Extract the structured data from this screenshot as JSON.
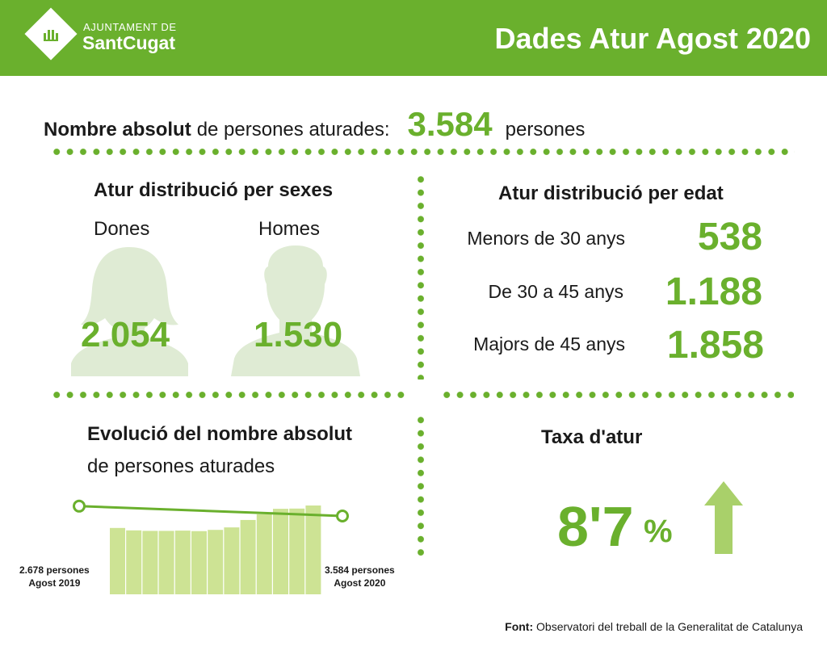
{
  "header": {
    "logo_line1": "AJUNTAMENT DE",
    "logo_line2": "SantCugat",
    "title": "Dades Atur Agost 2020"
  },
  "total": {
    "label_bold": "Nombre absolut",
    "label_rest": "de persones aturades:",
    "value": "3.584",
    "unit": "persones"
  },
  "sex": {
    "title": "Atur distribució per sexes",
    "women_label": "Dones",
    "men_label": "Homes",
    "women_value": "2.054",
    "men_value": "1.530"
  },
  "age": {
    "title": "Atur distribució per edat",
    "rows": [
      {
        "label": "Menors de 30 anys",
        "value": "538"
      },
      {
        "label": "De 30 a 45 anys",
        "value": "1.188"
      },
      {
        "label": "Majors de 45 anys",
        "value": "1.858"
      }
    ]
  },
  "evolution": {
    "title_bold": "Evolució del nombre absolut",
    "title_rest": "de persones aturades",
    "start_line1": "2.678 persones",
    "start_line2": "Agost 2019",
    "end_line1": "3.584 persones",
    "end_line2": "Agost 2020"
  },
  "chart_data": {
    "type": "bar",
    "values": [
      2678,
      2580,
      2560,
      2560,
      2570,
      2550,
      2600,
      2700,
      3000,
      3230,
      3450,
      3460,
      3584
    ],
    "ylim": [
      0,
      3584
    ],
    "trend": {
      "start": 2678,
      "end": 3584
    }
  },
  "rate": {
    "title": "Taxa d'atur",
    "value": "8'7",
    "unit": "%",
    "arrow_icon": "arrow-up-icon"
  },
  "source": {
    "label": "Font:",
    "text": "Observatori del treball de la Generalitat de Catalunya"
  },
  "colors": {
    "accent": "#6ab02d",
    "silhouette": "#dfebd4",
    "bar": "#cde394",
    "arrow": "#a9d06a"
  }
}
